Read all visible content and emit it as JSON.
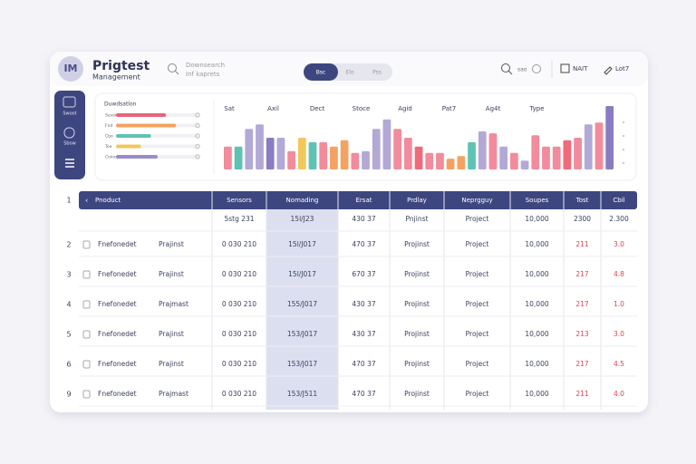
{
  "header": {
    "logo": "IM",
    "title": "Prigtest",
    "subtitle": "Management",
    "search": [
      "Downsearch",
      "Inf kaprets"
    ],
    "toggle": [
      "Bsc",
      "Elo",
      "Pss"
    ],
    "right": [
      "sao",
      "NAIT",
      "Lot7"
    ]
  },
  "sidebar": [
    "Swoot",
    "Sbow"
  ],
  "summary": {
    "title": "Duwdsatlon",
    "rows": [
      {
        "label": "Sevoiot",
        "value": 60,
        "color": "#e8647a"
      },
      {
        "label": "Fnd",
        "value": 72,
        "color": "#f4a261"
      },
      {
        "label": "Cbo",
        "value": 42,
        "color": "#5fc3b4"
      },
      {
        "label": "Toe",
        "value": 30,
        "color": "#f2c85b"
      },
      {
        "label": "Ciolost",
        "value": 50,
        "color": "#9a8cc8"
      }
    ]
  },
  "bars": {
    "labels": [
      "Sat",
      "Axil",
      "Dect",
      "Stoce",
      "Agid",
      "Pat7",
      "Ag4t",
      "Type"
    ],
    "ylim": [
      0,
      100
    ],
    "values": [
      36,
      36,
      64,
      71,
      50,
      50,
      29,
      50,
      43,
      43,
      36,
      46,
      26,
      29,
      64,
      79,
      64,
      50,
      36,
      26,
      26,
      17,
      21,
      43,
      60,
      57,
      36,
      26,
      14,
      54,
      36,
      36,
      46,
      50,
      71,
      74,
      100
    ],
    "colors": [
      "#f28b9b",
      "#5fc3b4",
      "#b3a9d6",
      "#b3a9d6",
      "#8a7cc0",
      "#b3a9d6",
      "#f28b9b",
      "#f2c85b",
      "#5fc3b4",
      "#f28b9b",
      "#f4a261",
      "#f4a261",
      "#f28b9b",
      "#b3a9d6",
      "#b3a9d6",
      "#b3a9d6",
      "#f28b9b",
      "#f28b9b",
      "#ef6b7a",
      "#f28b9b",
      "#f28b9b",
      "#f4a261",
      "#f4a261",
      "#5fc3b4",
      "#b3a9d6",
      "#f28b9b",
      "#b3a9d6",
      "#f28b9b",
      "#b3a9d6",
      "#f28b9b",
      "#f28b9b",
      "#f28b9b",
      "#ef6b7a",
      "#f28b9b",
      "#b3a9d6",
      "#f28b9b",
      "#8a7cc0"
    ]
  },
  "table": {
    "num": "1",
    "columns": [
      "Pnoduct",
      "Sensors",
      "Nomading",
      "Ersat",
      "Prdlay",
      "Neprgguy",
      "Soupes",
      "Tost",
      "Cbil"
    ],
    "rows": [
      {
        "values": [
          "5stg 231",
          "15l/J23",
          "430 37",
          "Pnjinst",
          "Project",
          "10,000",
          "2300",
          "2.300"
        ],
        "alert": false
      },
      {
        "num": "2",
        "name": "Fnefonedet",
        "project": "Prajinst",
        "values": [
          "0 030 210",
          "15l/J017",
          "470 37",
          "Projinst",
          "Project",
          "10,000",
          "211",
          "3.0"
        ],
        "alert": true
      },
      {
        "num": "3",
        "name": "Fnefonedet",
        "project": "Prajinst",
        "values": [
          "0 030 210",
          "15l/J017",
          "670 37",
          "Projinst",
          "Project",
          "10,000",
          "217",
          "4.8"
        ],
        "alert": true
      },
      {
        "num": "4",
        "name": "Fnefonedet",
        "project": "Prajmast",
        "values": [
          "0 030 210",
          "155/J017",
          "430 37",
          "Projinst",
          "Project",
          "10,000",
          "217",
          "1.0"
        ],
        "alert": true
      },
      {
        "num": "5",
        "name": "Fnefonedet",
        "project": "Prajinst",
        "values": [
          "0 030 210",
          "153/J017",
          "430 37",
          "Projinst",
          "Project",
          "10,000",
          "213",
          "3.0"
        ],
        "alert": true
      },
      {
        "num": "6",
        "name": "Fnefonedet",
        "project": "Prajinst",
        "values": [
          "0 030 210",
          "153/J017",
          "470 37",
          "Projinst",
          "Project",
          "10,000",
          "217",
          "4.5"
        ],
        "alert": true
      },
      {
        "num": "9",
        "name": "Fnefonedet",
        "project": "Prajmast",
        "values": [
          "0 030 210",
          "153/J511",
          "470 37",
          "Projinst",
          "Project",
          "10,000",
          "211",
          "4.0"
        ],
        "alert": true
      }
    ]
  }
}
